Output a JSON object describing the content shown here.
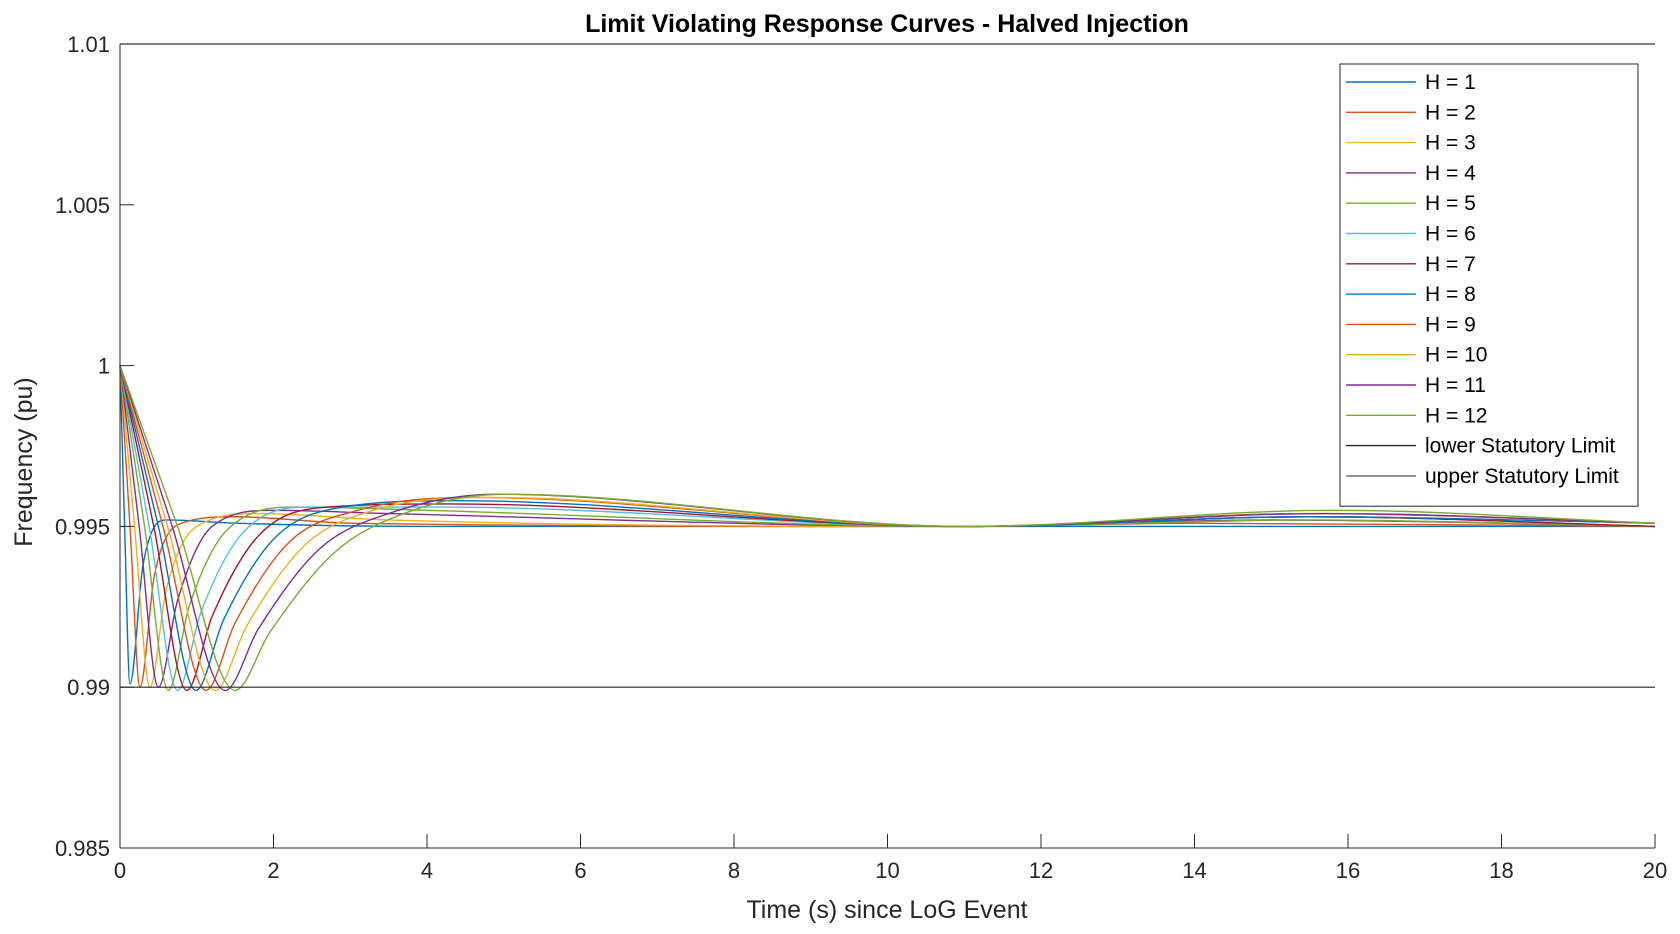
{
  "chart_data": {
    "type": "line",
    "title": "Limit Violating Response Curves - Halved Injection",
    "xlabel": "Time (s) since LoG Event",
    "ylabel": "Frequency (pu)",
    "xlim": [
      0,
      20
    ],
    "ylim": [
      0.985,
      1.01
    ],
    "x_ticks": [
      0,
      2,
      4,
      6,
      8,
      10,
      12,
      14,
      16,
      18,
      20
    ],
    "x_tick_labels": [
      "0",
      "2",
      "4",
      "6",
      "8",
      "10",
      "12",
      "14",
      "16",
      "18",
      "20"
    ],
    "y_ticks": [
      0.985,
      0.99,
      0.995,
      1.0,
      1.005,
      1.01
    ],
    "y_tick_labels": [
      "0.985",
      "0.99",
      "0.995",
      "1",
      "1.005",
      "1.01"
    ],
    "grid": false,
    "legend_position": "top-right",
    "series": [
      {
        "name": "H = 1",
        "color": "#0072BD",
        "x": [
          0,
          0.06,
          0.13,
          0.3,
          0.6,
          1.5,
          4,
          20
        ],
        "y": [
          1.0,
          0.995,
          0.9901,
          0.9938,
          0.9952,
          0.9951,
          0.995,
          0.995
        ]
      },
      {
        "name": "H = 2",
        "color": "#D95319",
        "x": [
          0,
          0.13,
          0.26,
          0.45,
          0.8,
          1.5,
          3,
          11,
          14,
          20
        ],
        "y": [
          1.0,
          0.995,
          0.99,
          0.9935,
          0.9951,
          0.9953,
          0.9951,
          0.995,
          0.9951,
          0.995
        ]
      },
      {
        "name": "H = 3",
        "color": "#EDB120",
        "x": [
          0,
          0.19,
          0.39,
          0.6,
          1.0,
          1.8,
          3.5,
          11,
          15,
          20
        ],
        "y": [
          1.0,
          0.995,
          0.99,
          0.993,
          0.995,
          0.9954,
          0.9952,
          0.995,
          0.9952,
          0.995
        ]
      },
      {
        "name": "H = 4",
        "color": "#7E2F8E",
        "x": [
          0,
          0.25,
          0.5,
          0.75,
          1.2,
          2.0,
          3.5,
          11,
          15,
          20
        ],
        "y": [
          1.0,
          0.995,
          0.99,
          0.9927,
          0.995,
          0.9955,
          0.9954,
          0.995,
          0.9952,
          0.995
        ]
      },
      {
        "name": "H = 5",
        "color": "#77AC30",
        "x": [
          0,
          0.32,
          0.63,
          0.9,
          1.4,
          2.3,
          4.0,
          11,
          15.5,
          20
        ],
        "y": [
          1.0,
          0.995,
          0.9899,
          0.9925,
          0.9949,
          0.9956,
          0.9955,
          0.995,
          0.9952,
          0.995
        ]
      },
      {
        "name": "H = 6",
        "color": "#4DBEEE",
        "x": [
          0,
          0.38,
          0.75,
          1.05,
          1.6,
          2.5,
          4.2,
          11,
          15.5,
          20
        ],
        "y": [
          1.0,
          0.995,
          0.9899,
          0.9923,
          0.9948,
          0.9956,
          0.9956,
          0.995,
          0.9953,
          0.995
        ]
      },
      {
        "name": "H = 7",
        "color": "#A2142F",
        "x": [
          0,
          0.44,
          0.87,
          1.2,
          1.8,
          2.7,
          4.3,
          11,
          15.5,
          20
        ],
        "y": [
          1.0,
          0.995,
          0.9899,
          0.9922,
          0.9947,
          0.9956,
          0.9957,
          0.995,
          0.9953,
          0.995
        ]
      },
      {
        "name": "H = 8",
        "color": "#0072BD",
        "x": [
          0,
          0.5,
          0.99,
          1.35,
          2.0,
          2.9,
          4.4,
          11,
          15.5,
          20
        ],
        "y": [
          1.0,
          0.995,
          0.9899,
          0.9921,
          0.9946,
          0.9956,
          0.9958,
          0.995,
          0.9953,
          0.9951
        ]
      },
      {
        "name": "H = 9",
        "color": "#D95319",
        "x": [
          0,
          0.56,
          1.12,
          1.5,
          2.2,
          3.1,
          4.6,
          11,
          15.5,
          20
        ],
        "y": [
          1.0,
          0.995,
          0.9899,
          0.992,
          0.9945,
          0.9955,
          0.9959,
          0.995,
          0.9954,
          0.9951
        ]
      },
      {
        "name": "H = 10",
        "color": "#EDB120",
        "x": [
          0,
          0.62,
          1.24,
          1.65,
          2.4,
          3.3,
          4.8,
          11,
          15.7,
          20
        ],
        "y": [
          1.0,
          0.995,
          0.9899,
          0.9919,
          0.9944,
          0.9955,
          0.9959,
          0.995,
          0.9954,
          0.9951
        ]
      },
      {
        "name": "H = 11",
        "color": "#7E2F8E",
        "x": [
          0,
          0.68,
          1.37,
          1.8,
          2.6,
          3.5,
          4.9,
          11,
          15.7,
          20
        ],
        "y": [
          1.0,
          0.995,
          0.9899,
          0.9918,
          0.9943,
          0.9954,
          0.996,
          0.995,
          0.9954,
          0.9951
        ]
      },
      {
        "name": "H = 12",
        "color": "#77AC30",
        "x": [
          0,
          0.75,
          1.5,
          1.95,
          2.8,
          3.7,
          5.0,
          11,
          15.8,
          20
        ],
        "y": [
          1.0,
          0.995,
          0.9899,
          0.9917,
          0.9942,
          0.9954,
          0.996,
          0.995,
          0.9955,
          0.9951
        ]
      },
      {
        "name": "lower Statutory Limit",
        "color": "#262626",
        "x": [
          0,
          20
        ],
        "y": [
          0.99,
          0.99
        ]
      },
      {
        "name": "upper Statutory Limit",
        "color": "#606060",
        "x": [
          0,
          20
        ],
        "y": [
          1.01,
          1.01
        ]
      }
    ]
  }
}
